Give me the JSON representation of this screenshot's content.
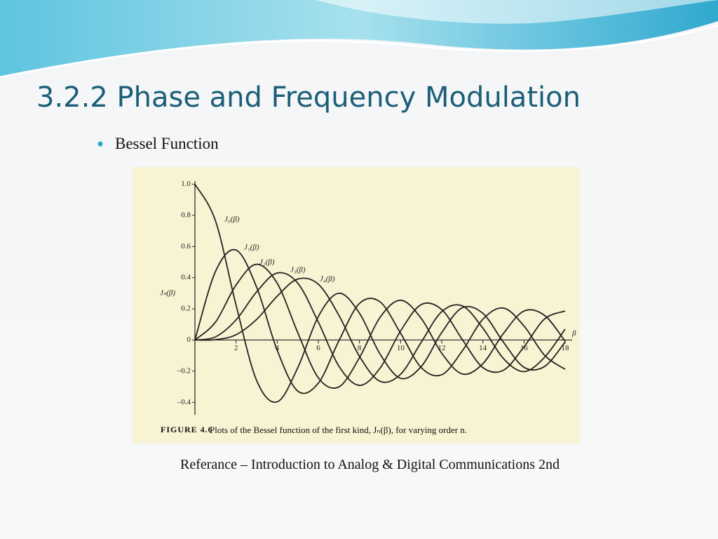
{
  "slide": {
    "title": "3.2.2 Phase and Frequency Modulation",
    "bullet": "Bessel Function",
    "reference": "Referance – Introduction to Analog & Digital Communications 2nd"
  },
  "chart_data": {
    "type": "line",
    "caption_label": "FIGURE 4.6",
    "caption": "Plots of the Bessel function of the first kind, Jₙ(β), for varying order n.",
    "x_label": "β",
    "y_label": "Jₙ(β)",
    "x": [
      0,
      1,
      2,
      3,
      4,
      5,
      6,
      7,
      8,
      9,
      10,
      11,
      12,
      13,
      14,
      15,
      16,
      17,
      18
    ],
    "series": [
      {
        "name": "J₀(β)",
        "color": "#222222",
        "values": [
          1,
          0.765,
          0.224,
          -0.26,
          -0.397,
          -0.178,
          0.151,
          0.3,
          0.172,
          -0.09,
          -0.246,
          -0.171,
          0.048,
          0.207,
          0.171,
          -0.014,
          -0.175,
          -0.17,
          -0.013
        ]
      },
      {
        "name": "J₁(β)",
        "color": "#222222",
        "values": [
          0,
          0.44,
          0.577,
          0.339,
          -0.066,
          -0.328,
          -0.277,
          -0.005,
          0.235,
          0.245,
          0.043,
          -0.177,
          -0.223,
          -0.07,
          0.133,
          0.205,
          0.09,
          -0.098,
          -0.188
        ]
      },
      {
        "name": "J₂(β)",
        "color": "#222222",
        "values": [
          0,
          0.115,
          0.353,
          0.486,
          0.364,
          0.047,
          -0.243,
          -0.301,
          -0.113,
          0.145,
          0.255,
          0.139,
          -0.085,
          -0.218,
          -0.152,
          0.042,
          0.186,
          0.158,
          -0.008
        ]
      },
      {
        "name": "J₃(β)",
        "color": "#222222",
        "values": [
          0,
          0.02,
          0.129,
          0.309,
          0.43,
          0.365,
          0.115,
          -0.168,
          -0.291,
          -0.181,
          0.058,
          0.227,
          0.195,
          0.003,
          -0.177,
          -0.194,
          -0.044,
          0.135,
          0.186
        ]
      },
      {
        "name": "J₄(β)",
        "color": "#222222",
        "values": [
          0,
          0.002,
          0.034,
          0.132,
          0.281,
          0.391,
          0.358,
          0.158,
          -0.105,
          -0.265,
          -0.22,
          -0.015,
          0.182,
          0.219,
          0.076,
          -0.119,
          -0.203,
          -0.111,
          0.07
        ]
      }
    ],
    "xlim": [
      0,
      18
    ],
    "ylim": [
      -0.48,
      1.02
    ],
    "xticks": [
      2,
      4,
      6,
      8,
      10,
      12,
      14,
      16,
      18
    ],
    "yticks": [
      {
        "value": 1,
        "label": "1.0"
      },
      0.8,
      0.6,
      0.4,
      0.2,
      0,
      {
        "value": -0.2,
        "label": "–0.2"
      },
      {
        "value": -0.4,
        "label": "–0.4"
      }
    ]
  }
}
